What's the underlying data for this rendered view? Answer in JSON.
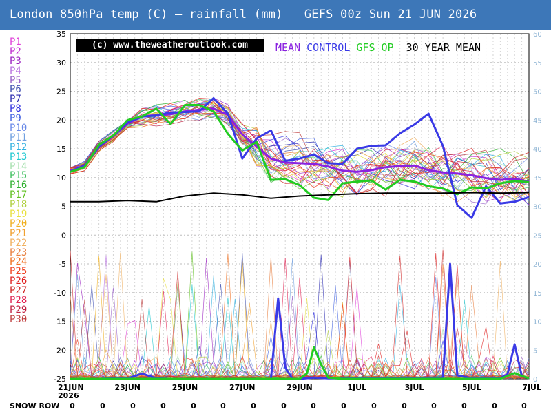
{
  "header": {
    "title": "London 850hPa temp (C) — rainfall (mm)   GEFS 00z Sun 21 JUN 2026"
  },
  "copyright": "(c) www.theweatheroutlook.com",
  "legend": [
    {
      "label": "MEAN",
      "color": "#8a22e0"
    },
    {
      "label": "CONTROL",
      "color": "#3a3ae6"
    },
    {
      "label": "GFS OP",
      "color": "#22cc22"
    },
    {
      "label": "30 YEAR MEAN",
      "color": "#000000"
    }
  ],
  "members": [
    {
      "label": "P1",
      "color": "#e040d8"
    },
    {
      "label": "P2",
      "color": "#c030d0"
    },
    {
      "label": "P3",
      "color": "#9a20c0"
    },
    {
      "label": "P4",
      "color": "#b870e0"
    },
    {
      "label": "P5",
      "color": "#9860c8"
    },
    {
      "label": "P6",
      "color": "#4050b0"
    },
    {
      "label": "P7",
      "color": "#2c2cb0"
    },
    {
      "label": "P8",
      "color": "#3030e0"
    },
    {
      "label": "P9",
      "color": "#4060e0"
    },
    {
      "label": "P10",
      "color": "#6a8ae8"
    },
    {
      "label": "P11",
      "color": "#70a0e0"
    },
    {
      "label": "P12",
      "color": "#30b0e0"
    },
    {
      "label": "P13",
      "color": "#20c8d0"
    },
    {
      "label": "P14",
      "color": "#a8e0b0"
    },
    {
      "label": "P15",
      "color": "#40c060"
    },
    {
      "label": "P16",
      "color": "#30b030"
    },
    {
      "label": "P17",
      "color": "#60c020"
    },
    {
      "label": "P18",
      "color": "#b0d040"
    },
    {
      "label": "P19",
      "color": "#e8e040"
    },
    {
      "label": "P20",
      "color": "#f0b020"
    },
    {
      "label": "P21",
      "color": "#f0a030"
    },
    {
      "label": "P22",
      "color": "#f0b060"
    },
    {
      "label": "P23",
      "color": "#e88040"
    },
    {
      "label": "P24",
      "color": "#f07020"
    },
    {
      "label": "P25",
      "color": "#f04020"
    },
    {
      "label": "P26",
      "color": "#e02020"
    },
    {
      "label": "P27",
      "color": "#d02828"
    },
    {
      "label": "P28",
      "color": "#e02050"
    },
    {
      "label": "P29",
      "color": "#c02040"
    },
    {
      "label": "P30",
      "color": "#c04040"
    }
  ],
  "snow_row": {
    "label": "SNOW ROW",
    "values": [
      "0",
      "0",
      "0",
      "0",
      "0",
      "0",
      "0",
      "0",
      "0",
      "0",
      "0",
      "0",
      "0",
      "0",
      "0",
      "0"
    ]
  },
  "chart_data": {
    "type": "line",
    "ylabel_left": "",
    "ylabel_right": "",
    "ylim_left": [
      -25,
      35
    ],
    "ylim_right": [
      0,
      60
    ],
    "yticks_left": [
      35,
      30,
      25,
      20,
      15,
      10,
      5,
      0,
      -5,
      -10,
      -15,
      -20,
      -25
    ],
    "yticks_right": [
      60,
      55,
      50,
      45,
      40,
      35,
      30,
      25,
      20,
      15,
      10,
      5,
      0
    ],
    "xlim_hours": [
      0,
      384
    ],
    "xticks": [
      {
        "h": 0,
        "label": "21JUN",
        "sub": "2026"
      },
      {
        "h": 48,
        "label": "23JUN"
      },
      {
        "h": 96,
        "label": "25JUN"
      },
      {
        "h": 144,
        "label": "27JUN"
      },
      {
        "h": 192,
        "label": "29JUN"
      },
      {
        "h": 240,
        "label": "1JUL"
      },
      {
        "h": 288,
        "label": "3JUL"
      },
      {
        "h": 336,
        "label": "5JUL"
      },
      {
        "h": 384,
        "label": "7JUL"
      }
    ],
    "grid": true,
    "temp_series": [
      {
        "name": "MEAN",
        "color": "#8a22e0",
        "width": 3,
        "x": [
          0,
          12,
          24,
          36,
          48,
          60,
          72,
          84,
          96,
          108,
          120,
          132,
          144,
          156,
          168,
          180,
          192,
          204,
          216,
          228,
          240,
          252,
          264,
          276,
          288,
          300,
          312,
          324,
          336,
          348,
          360,
          372,
          384
        ],
        "y": [
          11.2,
          12,
          15.5,
          17.2,
          19.4,
          20.6,
          20.8,
          21,
          21.5,
          21.8,
          22,
          20.9,
          17.5,
          15.4,
          13.3,
          12.6,
          12.5,
          12.4,
          11.9,
          11.2,
          11,
          11.3,
          11.8,
          12,
          12.1,
          11.3,
          10.9,
          10.7,
          10.4,
          9.9,
          9.6,
          9.8,
          9.3
        ]
      },
      {
        "name": "CONTROL",
        "color": "#3a3ae6",
        "width": 3,
        "x": [
          0,
          12,
          24,
          36,
          48,
          60,
          72,
          84,
          96,
          108,
          120,
          132,
          144,
          156,
          168,
          180,
          192,
          204,
          216,
          228,
          240,
          252,
          264,
          276,
          288,
          300,
          312,
          324,
          336,
          348,
          360,
          372,
          384
        ],
        "y": [
          11,
          12.1,
          15.3,
          17.3,
          19.6,
          20.6,
          20.8,
          21.3,
          21.4,
          21.5,
          23.8,
          21.1,
          13.3,
          16.8,
          18.2,
          12.9,
          13.3,
          14,
          12.5,
          12.4,
          15,
          15.5,
          15.6,
          17.7,
          19.2,
          21.1,
          15.5,
          5.2,
          3,
          8.5,
          5.5,
          5.8,
          6.6
        ]
      },
      {
        "name": "GFS OP",
        "color": "#22cc22",
        "width": 3,
        "x": [
          0,
          12,
          24,
          36,
          48,
          60,
          72,
          84,
          96,
          108,
          120,
          132,
          144,
          156,
          168,
          180,
          192,
          204,
          216,
          228,
          240,
          252,
          264,
          276,
          288,
          300,
          312,
          324,
          336,
          348,
          360,
          372,
          384
        ],
        "y": [
          11,
          11.8,
          15.7,
          17.3,
          20,
          20.6,
          22,
          19.3,
          22.6,
          22.6,
          21.5,
          17.6,
          14.7,
          16.2,
          9.6,
          9.7,
          8.7,
          6.5,
          6.1,
          9,
          9.3,
          9.5,
          7.9,
          9.6,
          9.3,
          8.5,
          8.1,
          7.1,
          8.3,
          8.1,
          9,
          9.4,
          9.2
        ]
      },
      {
        "name": "30 YEAR MEAN",
        "color": "#000000",
        "width": 2,
        "x": [
          0,
          24,
          48,
          72,
          96,
          120,
          144,
          168,
          192,
          216,
          240,
          264,
          288,
          312,
          336,
          360,
          384
        ],
        "y": [
          5.8,
          5.8,
          6,
          5.8,
          6.8,
          7.3,
          7,
          6.4,
          6.8,
          7,
          7.2,
          7.3,
          7.3,
          7.3,
          7.4,
          7.3,
          7.4
        ]
      }
    ],
    "rain_series": [
      {
        "name": "CONTROL",
        "color": "#3a3ae6",
        "width": 3,
        "x": [
          0,
          12,
          24,
          36,
          48,
          60,
          72,
          84,
          96,
          108,
          120,
          132,
          144,
          156,
          168,
          174,
          180,
          186,
          192,
          204,
          216,
          228,
          240,
          252,
          264,
          276,
          288,
          300,
          312,
          318,
          324,
          336,
          348,
          360,
          366,
          372,
          378,
          384
        ],
        "y": [
          0,
          0,
          0,
          0.1,
          0.1,
          0.9,
          0.1,
          0,
          0,
          0,
          0,
          0,
          0,
          0,
          0,
          14,
          2,
          0,
          0,
          0.2,
          0.1,
          0.1,
          0.1,
          0.1,
          0.1,
          0.1,
          0.1,
          0.2,
          0.2,
          20,
          0.6,
          0.1,
          0.2,
          0.1,
          0.8,
          6,
          0.5,
          0.1
        ]
      },
      {
        "name": "GFS OP",
        "color": "#22cc22",
        "width": 3,
        "x": [
          0,
          12,
          24,
          36,
          48,
          60,
          72,
          84,
          96,
          108,
          120,
          132,
          144,
          156,
          168,
          180,
          192,
          198,
          204,
          210,
          216,
          228,
          240,
          252,
          264,
          276,
          288,
          300,
          312,
          324,
          336,
          348,
          360,
          372,
          378,
          384
        ],
        "y": [
          0,
          0,
          0,
          0,
          0,
          0,
          0,
          0,
          0,
          0,
          0,
          0,
          0,
          0,
          0,
          0,
          0,
          0.9,
          5.5,
          2.5,
          0.2,
          0,
          0,
          0,
          0,
          0,
          0,
          0,
          0,
          0,
          0,
          0,
          0,
          1,
          0.5,
          0.1
        ]
      }
    ]
  }
}
